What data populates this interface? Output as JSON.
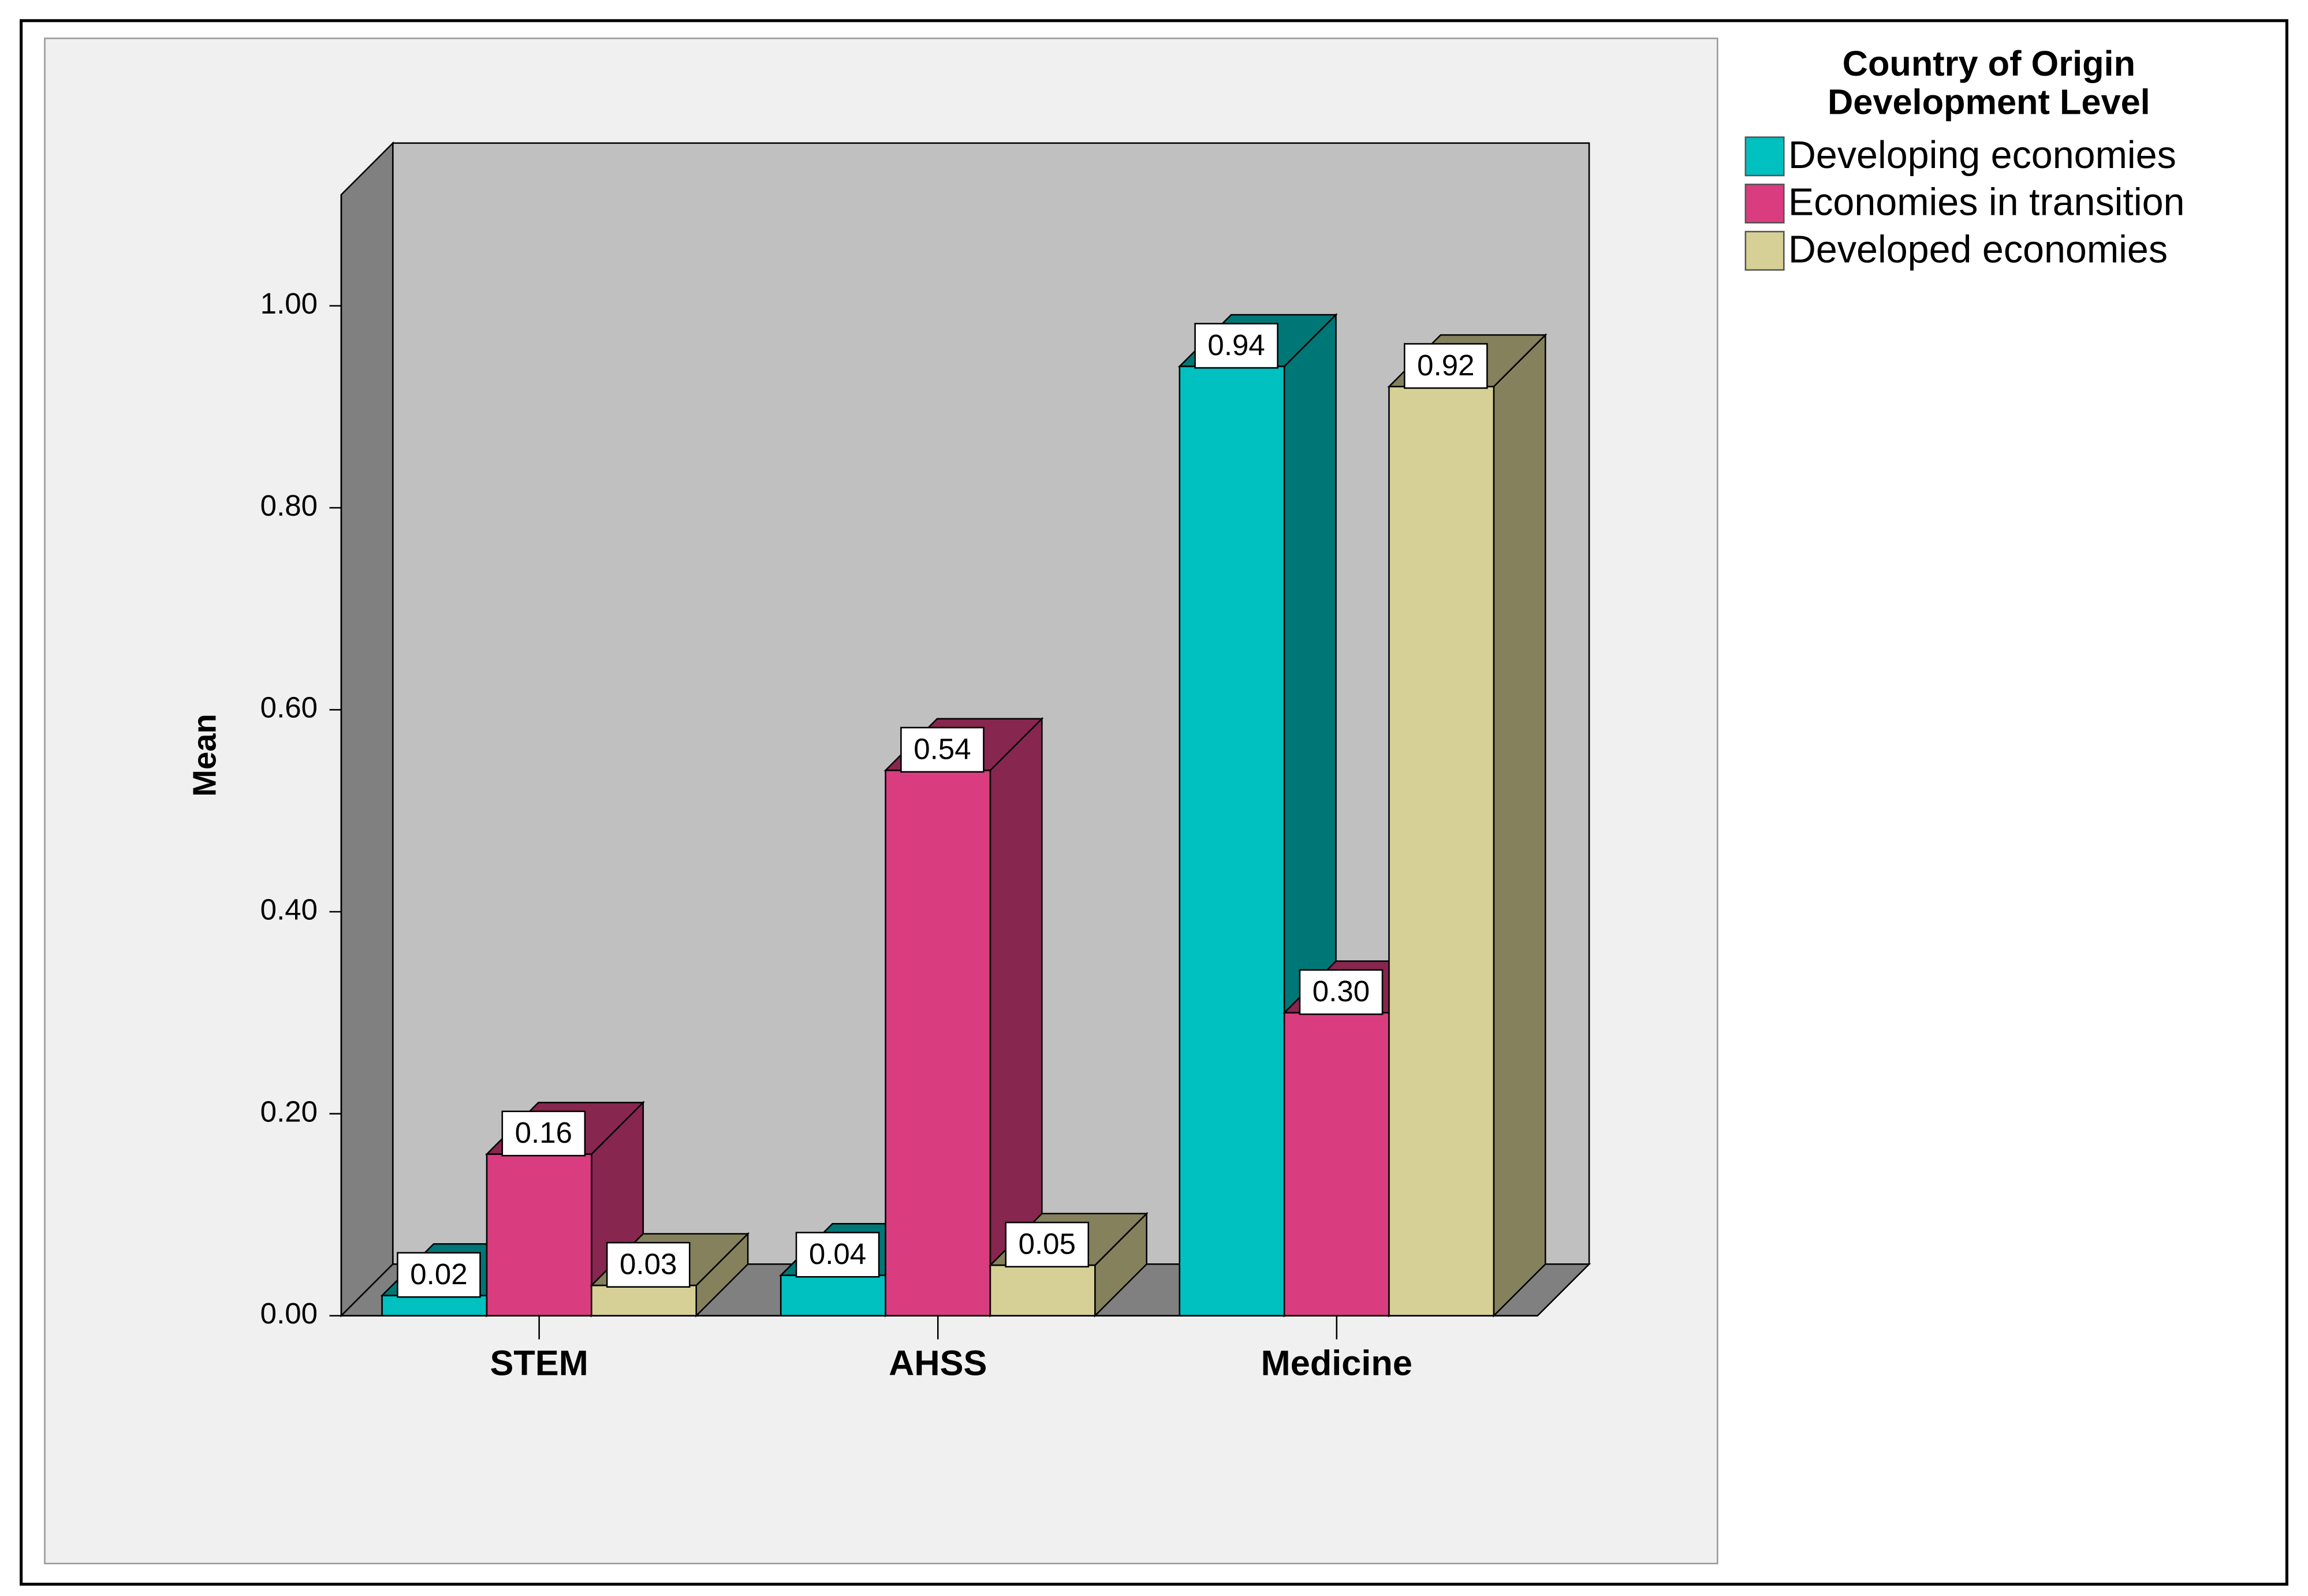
{
  "chart_data": {
    "type": "bar3d",
    "categories": [
      "STEM",
      "AHSS",
      "Medicine"
    ],
    "y_label": "Mean",
    "legend_title": [
      "Country of Origin",
      "Development Level"
    ],
    "series": [
      {
        "name": "Developing economies",
        "color": "#00c0c0",
        "values": [
          0.02,
          0.04,
          0.94
        ],
        "value_labels": [
          "0.02",
          "0.04",
          "0.94"
        ]
      },
      {
        "name": "Economies in transition",
        "color": "#d93d7f",
        "values": [
          0.16,
          0.54,
          0.3
        ],
        "value_labels": [
          "0.16",
          "0.54",
          "0.30"
        ]
      },
      {
        "name": "Developed economies",
        "color": "#d6d096",
        "values": [
          0.03,
          0.05,
          0.92
        ],
        "value_labels": [
          "0.03",
          "0.05",
          "0.92"
        ]
      }
    ],
    "ylim": [
      0,
      1.11
    ],
    "yticks": [
      {
        "value": 0,
        "label": "0.00"
      },
      {
        "value": 0.2,
        "label": "0.20"
      },
      {
        "value": 0.4,
        "label": "0.40"
      },
      {
        "value": 0.6,
        "label": "0.60"
      },
      {
        "value": 0.8,
        "label": "0.80"
      },
      {
        "value": 1,
        "label": "1.00"
      }
    ],
    "grid": false
  }
}
